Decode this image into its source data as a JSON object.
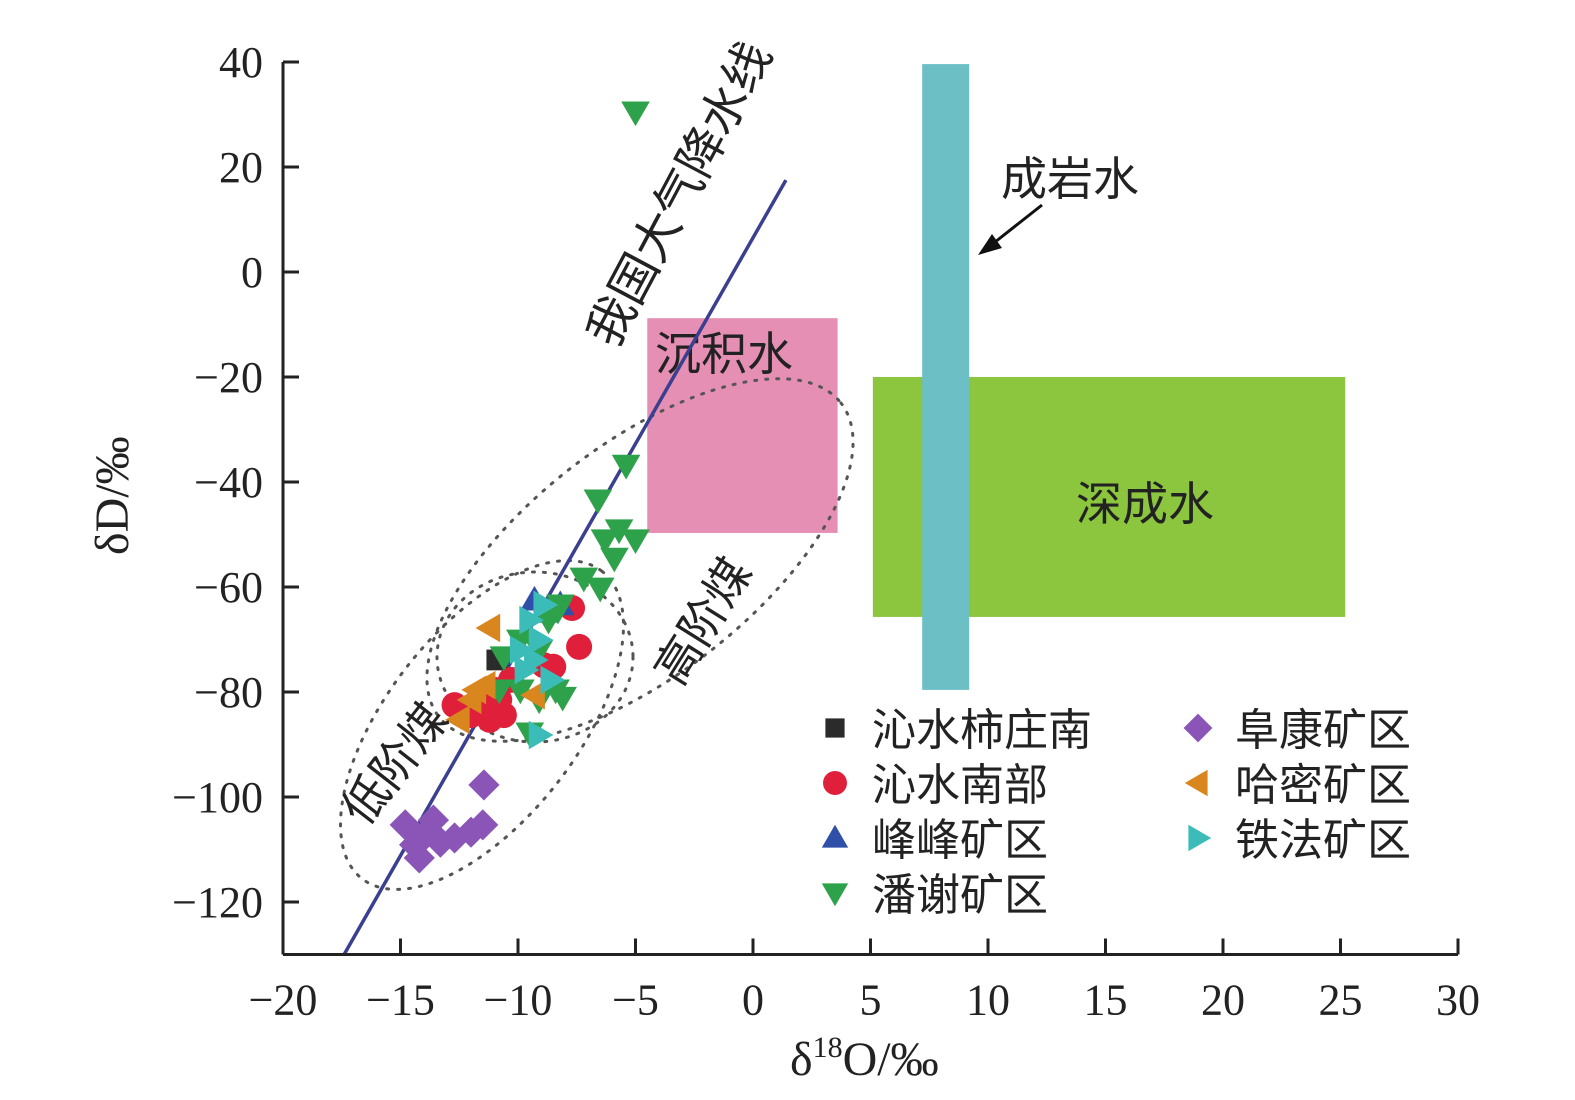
{
  "chart_data": {
    "type": "scatter",
    "xlabel": "δ18O/‰",
    "xlabel_main": "δ",
    "xlabel_sup": "18",
    "xlabel_rest": "O/‰",
    "ylabel": "δD/‰",
    "xlim": [
      -20,
      30
    ],
    "ylim": [
      -130,
      40
    ],
    "xticks": [
      -20,
      -15,
      -10,
      -5,
      0,
      5,
      10,
      15,
      20,
      25,
      30
    ],
    "xtick_labels": [
      "−20",
      "−15",
      "−10",
      "−5",
      "0",
      "5",
      "10",
      "15",
      "20",
      "25",
      "30"
    ],
    "yticks": [
      40,
      20,
      0,
      -20,
      -40,
      -60,
      -80,
      -100,
      -120
    ],
    "ytick_labels": [
      "40",
      "20",
      "0",
      "−20",
      "−40",
      "−60",
      "−80",
      "−100",
      "−120"
    ],
    "meteoric_line": {
      "label": "我国大气降水线",
      "x": [
        -17.4,
        1.4
      ],
      "y": [
        -130,
        17.5
      ],
      "color": "#3a3f8f"
    },
    "regions": [
      {
        "label": "沉积水",
        "x": [
          -4.5,
          3.6
        ],
        "y": [
          -49.7,
          -8.8
        ],
        "color": "#e58fb4"
      },
      {
        "label": "深成水",
        "x": [
          5.1,
          25.2
        ],
        "y": [
          -65.7,
          -20
        ],
        "color": "#8cc63e"
      },
      {
        "label": "成岩水",
        "x": [
          7.2,
          9.2
        ],
        "y": [
          -79.6,
          39.6
        ],
        "color": "#6cbfc5"
      }
    ],
    "zone_labels": {
      "low_rank": "低阶煤",
      "high_rank": "高阶煤"
    },
    "series": [
      {
        "name": "沁水柿庄南",
        "marker": "square",
        "color": "#2b2b2b",
        "points": [
          [
            -10.9,
            -73.9
          ],
          [
            -10.9,
            -83.8
          ]
        ]
      },
      {
        "name": "沁水南部",
        "marker": "circle",
        "color": "#e0203a",
        "points": [
          [
            -7.4,
            -71.4
          ],
          [
            -7.7,
            -64
          ],
          [
            -8.5,
            -75.2
          ],
          [
            -12.7,
            -82.5
          ],
          [
            -12.0,
            -84.4
          ],
          [
            -11.2,
            -85.3
          ],
          [
            -10.8,
            -81.5
          ],
          [
            -10.3,
            -77.7
          ],
          [
            -11.0,
            -79.6
          ],
          [
            -11.6,
            -83.4
          ],
          [
            -10.6,
            -84.4
          ],
          [
            -8.9,
            -74.9
          ]
        ]
      },
      {
        "name": "峰峰矿区",
        "marker": "triangle-up",
        "color": "#2f4fa8",
        "points": [
          [
            -9.3,
            -62.5
          ],
          [
            -8.2,
            -63.4
          ],
          [
            -8.9,
            -64.8
          ]
        ]
      },
      {
        "name": "潘谢矿区",
        "marker": "triangle-down",
        "color": "#2ea24a",
        "points": [
          [
            -5.0,
            30.5
          ],
          [
            -5.4,
            -36.8
          ],
          [
            -6.6,
            -43.4
          ],
          [
            -5.7,
            -49.1
          ],
          [
            -6.3,
            -51
          ],
          [
            -5.0,
            -51
          ],
          [
            -5.9,
            -54.5
          ],
          [
            -7.2,
            -58.3
          ],
          [
            -6.5,
            -60.2
          ],
          [
            -8.2,
            -63.4
          ],
          [
            -10.6,
            -73.3
          ],
          [
            -8.1,
            -81
          ],
          [
            -9.5,
            -87.8
          ],
          [
            -9.9,
            -79.6
          ],
          [
            -9.1,
            -81.5
          ],
          [
            -8.4,
            -79.6
          ],
          [
            -9.9,
            -70.1
          ],
          [
            -9.1,
            -72
          ],
          [
            -8.7,
            -66.3
          ],
          [
            -8.3,
            -64.4
          ],
          [
            -10.8,
            -79.6
          ]
        ]
      },
      {
        "name": "阜康矿区",
        "marker": "diamond",
        "color": "#8b55b8",
        "points": [
          [
            -11.45,
            -97.7
          ],
          [
            -14.8,
            -105.3
          ],
          [
            -13.6,
            -104.4
          ],
          [
            -14.4,
            -109.1
          ],
          [
            -14.2,
            -111.6
          ],
          [
            -13.3,
            -108.6
          ],
          [
            -12.7,
            -107.8
          ],
          [
            -12.0,
            -106.7
          ],
          [
            -11.5,
            -105.3
          ],
          [
            -14.0,
            -107.5
          ]
        ]
      },
      {
        "name": "哈密矿区",
        "marker": "triangle-left",
        "color": "#d9861f",
        "points": [
          [
            -11.2,
            -67.8
          ],
          [
            -12.5,
            -85.3
          ],
          [
            -11.8,
            -79.6
          ],
          [
            -9.3,
            -80.6
          ],
          [
            -11.4,
            -78.7
          ],
          [
            -12.0,
            -81.5
          ]
        ]
      },
      {
        "name": "铁法矿区",
        "marker": "triangle-right",
        "color": "#3bbcb8",
        "points": [
          [
            -9.1,
            -88.2
          ],
          [
            -9.5,
            -66.3
          ],
          [
            -9.1,
            -70.1
          ],
          [
            -9.3,
            -73.9
          ],
          [
            -8.6,
            -77.7
          ],
          [
            -9.9,
            -72
          ],
          [
            -8.9,
            -63.4
          ],
          [
            -9.7,
            -75.8
          ]
        ]
      }
    ],
    "legend_placement": "bottom-right"
  }
}
